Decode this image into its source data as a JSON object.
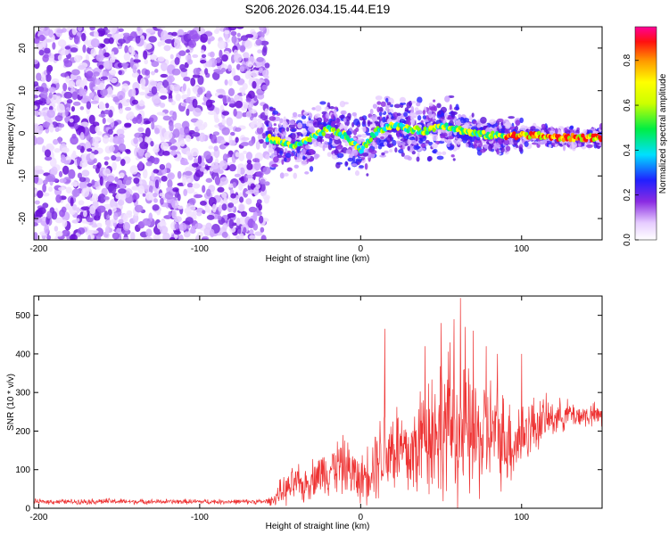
{
  "title": "S206.2026.034.15.44.E19",
  "chart_data": [
    {
      "type": "heatmap",
      "xlabel": "Height of straight line (km)",
      "ylabel": "Frequency (Hz)",
      "xlim": [
        -203,
        150
      ],
      "ylim": [
        -25,
        25
      ],
      "xticks": [
        -200,
        -100,
        0,
        100
      ],
      "yticks": [
        -20,
        -10,
        0,
        10,
        20
      ],
      "colorbar": {
        "label": "Normalized spectral amplitude",
        "range": [
          0,
          0.95
        ],
        "ticks": [
          0,
          0.2,
          0.4,
          0.6,
          0.8
        ]
      },
      "noise_region_x": [
        -203,
        -58
      ],
      "signal_ridge": {
        "x": [
          -58,
          -50,
          -40,
          -30,
          -20,
          -10,
          0,
          10,
          20,
          30,
          40,
          50,
          60,
          70,
          80,
          90,
          100,
          110,
          120,
          130,
          140,
          150
        ],
        "y": [
          -1,
          -2,
          -3,
          -1,
          1,
          -0.5,
          -4,
          0.5,
          2,
          1,
          0.5,
          2,
          1,
          0,
          -0.5,
          -0.5,
          -0.5,
          -0.5,
          -1,
          -1,
          -1,
          -1
        ]
      }
    },
    {
      "type": "line",
      "xlabel": "Height of straight line (km)",
      "ylabel": "SNR (10 * v/v)",
      "xlim": [
        -203,
        150
      ],
      "ylim": [
        0,
        550
      ],
      "xticks": [
        -200,
        -100,
        0,
        100
      ],
      "yticks": [
        0,
        100,
        200,
        300,
        400,
        500
      ],
      "color": "#ee3333",
      "series": [
        {
          "x": [
            -203,
            -180,
            -160,
            -140,
            -120,
            -100,
            -80,
            -60,
            -55,
            -50,
            -45,
            -40,
            -35,
            -30,
            -25,
            -20,
            -15,
            -10,
            -5,
            0,
            5,
            10,
            15,
            20,
            25,
            30,
            35,
            40,
            45,
            50,
            55,
            60,
            65,
            70,
            75,
            80,
            85,
            90,
            95,
            100,
            105,
            110,
            115,
            120,
            125,
            130,
            135,
            140,
            145,
            150
          ],
          "mean": [
            17,
            17,
            18,
            17,
            17,
            17,
            17,
            17,
            20,
            40,
            50,
            65,
            55,
            80,
            90,
            100,
            110,
            110,
            90,
            70,
            100,
            130,
            150,
            160,
            150,
            130,
            160,
            200,
            200,
            210,
            220,
            200,
            190,
            180,
            180,
            200,
            190,
            180,
            170,
            190,
            210,
            220,
            230,
            235,
            240,
            245,
            240,
            240,
            240,
            240
          ],
          "amplitude": [
            8,
            8,
            10,
            8,
            8,
            8,
            8,
            8,
            15,
            40,
            50,
            60,
            55,
            60,
            70,
            80,
            90,
            90,
            90,
            70,
            100,
            130,
            150,
            160,
            160,
            160,
            180,
            200,
            220,
            230,
            240,
            230,
            210,
            200,
            190,
            180,
            160,
            150,
            140,
            120,
            100,
            90,
            70,
            60,
            50,
            45,
            40,
            40,
            40,
            40
          ],
          "peaks": [
            {
              "x": 15,
              "y": 465
            },
            {
              "x": 40,
              "y": 420
            },
            {
              "x": 50,
              "y": 480
            },
            {
              "x": 58,
              "y": 490
            },
            {
              "x": 62,
              "y": 545
            },
            {
              "x": 65,
              "y": 470
            },
            {
              "x": 70,
              "y": 460
            },
            {
              "x": 78,
              "y": 420
            },
            {
              "x": 85,
              "y": 400
            },
            {
              "x": 100,
              "y": 400
            }
          ]
        }
      ]
    }
  ]
}
